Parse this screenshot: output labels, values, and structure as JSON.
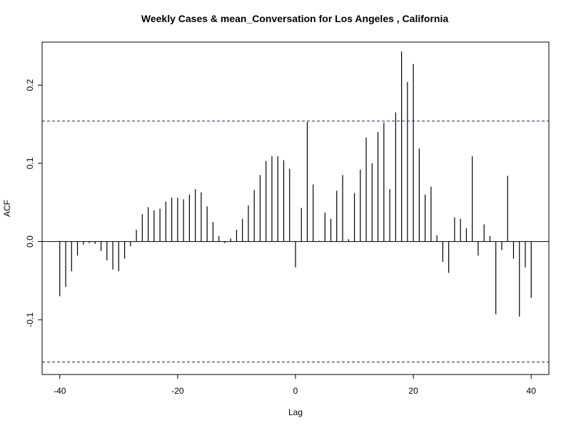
{
  "chart_data": {
    "type": "bar",
    "title": "Weekly Cases & mean_Conversation for Los Angeles , California",
    "xlabel": "Lag",
    "ylabel": "ACF",
    "xlim": [
      -43,
      43
    ],
    "ylim": [
      -0.17,
      0.255
    ],
    "x_ticks": [
      -40,
      -20,
      0,
      20,
      40
    ],
    "x_tick_labels": [
      "-40",
      "-20",
      "0",
      "20",
      "40"
    ],
    "y_ticks": [
      -0.1,
      0.0,
      0.1,
      0.2
    ],
    "y_tick_labels": [
      "-0.1",
      "0.0",
      "0.1",
      "0.2"
    ],
    "confidence_bound": 0.154,
    "grid": false,
    "colors": {
      "bars": "#000000",
      "confidence_lines": "#1f1f8f",
      "zero_line": "#000000",
      "frame": "#000000"
    },
    "lags": [
      -40,
      -39,
      -38,
      -37,
      -36,
      -35,
      -34,
      -33,
      -32,
      -31,
      -30,
      -29,
      -28,
      -27,
      -26,
      -25,
      -24,
      -23,
      -22,
      -21,
      -20,
      -19,
      -18,
      -17,
      -16,
      -15,
      -14,
      -13,
      -12,
      -11,
      -10,
      -9,
      -8,
      -7,
      -6,
      -5,
      -4,
      -3,
      -2,
      -1,
      0,
      1,
      2,
      3,
      4,
      5,
      6,
      7,
      8,
      9,
      10,
      11,
      12,
      13,
      14,
      15,
      16,
      17,
      18,
      19,
      20,
      21,
      22,
      23,
      24,
      25,
      26,
      27,
      28,
      29,
      30,
      31,
      32,
      33,
      34,
      35,
      36,
      37,
      38,
      39,
      40
    ],
    "values": [
      -0.07,
      -0.058,
      -0.038,
      -0.018,
      -0.004,
      -0.002,
      -0.003,
      -0.012,
      -0.024,
      -0.036,
      -0.038,
      -0.022,
      -0.006,
      0.015,
      0.035,
      0.044,
      0.04,
      0.042,
      0.051,
      0.056,
      0.056,
      0.054,
      0.06,
      0.067,
      0.063,
      0.045,
      0.025,
      0.007,
      -0.002,
      0.004,
      0.015,
      0.029,
      0.046,
      0.066,
      0.085,
      0.103,
      0.109,
      0.109,
      0.104,
      0.093,
      -0.033,
      0.043,
      0.153,
      0.073,
      0.001,
      0.037,
      0.029,
      0.065,
      0.085,
      0.003,
      0.062,
      0.092,
      0.133,
      0.1,
      0.14,
      0.152,
      0.067,
      0.165,
      0.243,
      0.204,
      0.227,
      0.119,
      0.06,
      0.07,
      0.008,
      -0.026,
      -0.04,
      0.031,
      0.029,
      0.017,
      0.109,
      -0.018,
      0.022,
      0.007,
      -0.093,
      -0.011,
      0.084,
      -0.022,
      -0.096,
      -0.033,
      -0.072
    ]
  }
}
